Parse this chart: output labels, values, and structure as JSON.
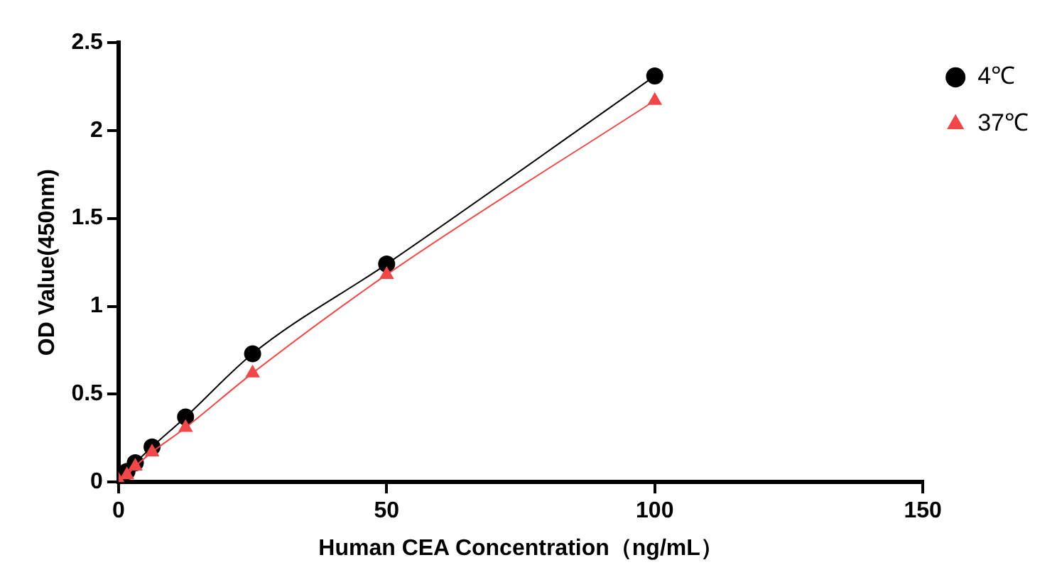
{
  "chart_data": {
    "type": "line",
    "xlabel": "Human CEA Concentration（ng/mL）",
    "ylabel": "OD Value(450nm)",
    "x": [
      0,
      1.5625,
      3.125,
      6.25,
      12.5,
      25,
      50,
      100
    ],
    "series": [
      {
        "name": "4℃",
        "color": "#000000",
        "marker": "circle",
        "values": [
          0.02,
          0.06,
          0.11,
          0.2,
          0.37,
          0.73,
          1.24,
          2.31
        ]
      },
      {
        "name": "37℃",
        "color": "#f04848",
        "marker": "triangle",
        "values": [
          0.01,
          0.04,
          0.09,
          0.17,
          0.31,
          0.62,
          1.18,
          2.17
        ]
      }
    ],
    "xlim": [
      0,
      150
    ],
    "xticks": [
      0,
      50,
      100,
      150
    ],
    "ylim": [
      0,
      2.5
    ],
    "yticks": [
      0,
      0.5,
      1,
      1.5,
      2,
      2.5
    ],
    "grid": false,
    "legend": "top right"
  }
}
